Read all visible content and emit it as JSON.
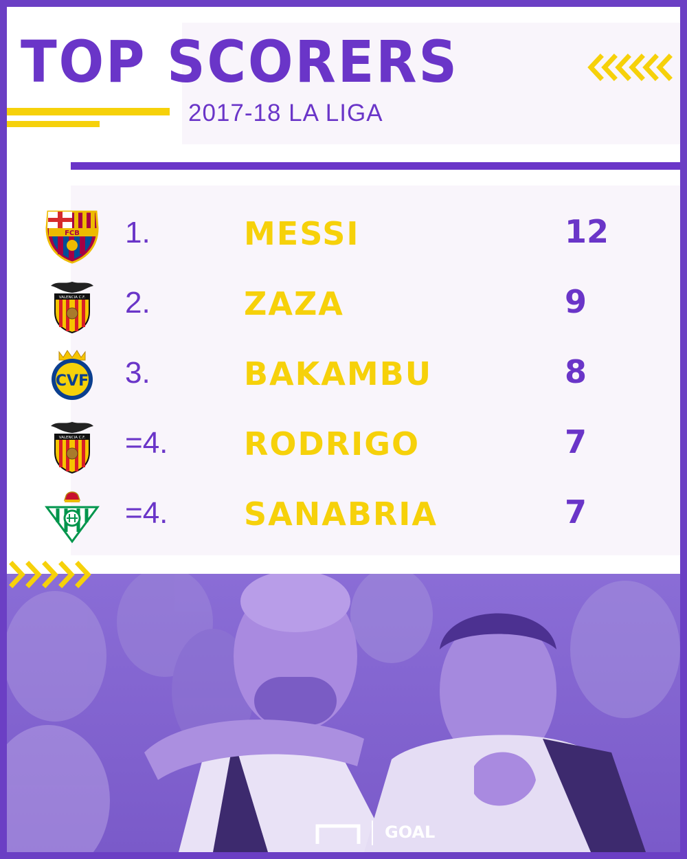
{
  "header": {
    "title": "TOP SCORERS",
    "subtitle": "2017-18 LA LIGA"
  },
  "colors": {
    "purple": "#6b3fc4",
    "yellow": "#f6d10a",
    "panel": "#f9f5fb"
  },
  "scorers": [
    {
      "rank": "1.",
      "player": "MESSI",
      "goals": "12",
      "club_icon": "barcelona-crest-icon"
    },
    {
      "rank": "2.",
      "player": "ZAZA",
      "goals": "9",
      "club_icon": "valencia-crest-icon"
    },
    {
      "rank": "3.",
      "player": "BAKAMBU",
      "goals": "8",
      "club_icon": "villarreal-crest-icon"
    },
    {
      "rank": "=4.",
      "player": "RODRIGO",
      "goals": "7",
      "club_icon": "valencia-crest-icon"
    },
    {
      "rank": "=4.",
      "player": "SANABRIA",
      "goals": "7",
      "club_icon": "real-betis-crest-icon"
    }
  ],
  "crest_text": {
    "barcelona": "FCB",
    "valencia": "VALENCIA C.F.",
    "villarreal": "CVF"
  },
  "branding": {
    "logo_text": "GOAL"
  }
}
